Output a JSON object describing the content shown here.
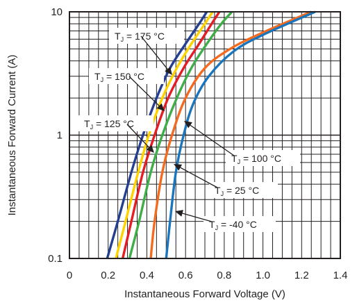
{
  "chart_data": {
    "type": "line",
    "xlabel": "Instantaneous Forward Voltage (V)",
    "ylabel": "Instantaneous Forward Current (A)",
    "x_scale": "linear",
    "y_scale": "log",
    "xlim": [
      0,
      1.4
    ],
    "ylim": [
      0.1,
      10
    ],
    "x_ticks": [
      "0",
      "0.2",
      "0.4",
      "0.6",
      "0.8",
      "1.0",
      "1.2",
      "1.4"
    ],
    "y_ticks": [
      "0.1",
      "1",
      "10"
    ],
    "grid": true,
    "series": [
      {
        "name": "T_J = 175 °C",
        "color": "#243f8f",
        "points": [
          [
            0.195,
            0.1
          ],
          [
            0.25,
            0.2
          ],
          [
            0.32,
            0.5
          ],
          [
            0.38,
            1
          ],
          [
            0.45,
            2
          ],
          [
            0.52,
            3.5
          ],
          [
            0.6,
            5.5
          ],
          [
            0.67,
            8
          ],
          [
            0.71,
            10
          ]
        ]
      },
      {
        "name": "T_J = 150 °C",
        "color": "#ffd200",
        "points": [
          [
            0.24,
            0.1
          ],
          [
            0.29,
            0.2
          ],
          [
            0.355,
            0.5
          ],
          [
            0.41,
            1
          ],
          [
            0.48,
            2
          ],
          [
            0.555,
            3.5
          ],
          [
            0.63,
            5.5
          ],
          [
            0.7,
            8
          ],
          [
            0.74,
            10
          ]
        ]
      },
      {
        "name": "T_J = 125 °C",
        "color": "#e31e24",
        "points": [
          [
            0.275,
            0.1
          ],
          [
            0.32,
            0.2
          ],
          [
            0.38,
            0.5
          ],
          [
            0.44,
            1
          ],
          [
            0.51,
            2
          ],
          [
            0.59,
            3.5
          ],
          [
            0.67,
            5.5
          ],
          [
            0.735,
            8
          ],
          [
            0.775,
            10
          ]
        ]
      },
      {
        "name": "T_J = 100 °C",
        "color": "#3fae49",
        "points": [
          [
            0.31,
            0.1
          ],
          [
            0.36,
            0.2
          ],
          [
            0.42,
            0.5
          ],
          [
            0.48,
            1
          ],
          [
            0.555,
            2
          ],
          [
            0.63,
            3.5
          ],
          [
            0.71,
            5.5
          ],
          [
            0.785,
            8
          ],
          [
            0.84,
            10
          ]
        ]
      },
      {
        "name": "T_J = 25 °C",
        "color": "#f26b21",
        "points": [
          [
            0.42,
            0.1
          ],
          [
            0.44,
            0.2
          ],
          [
            0.48,
            0.5
          ],
          [
            0.53,
            1
          ],
          [
            0.6,
            2
          ],
          [
            0.7,
            3.5
          ],
          [
            0.83,
            5
          ],
          [
            1.0,
            6.8
          ],
          [
            1.25,
            10
          ]
        ]
      },
      {
        "name": "T_J = -40 °C",
        "color": "#1b75bc",
        "points": [
          [
            0.5,
            0.1
          ],
          [
            0.52,
            0.2
          ],
          [
            0.55,
            0.5
          ],
          [
            0.59,
            1
          ],
          [
            0.64,
            1.8
          ],
          [
            0.72,
            3
          ],
          [
            0.85,
            4.8
          ],
          [
            1.0,
            6.5
          ],
          [
            1.27,
            10
          ]
        ]
      }
    ],
    "annotations": [
      {
        "label": "T",
        "sub": "J",
        "rest": " = 175 °C",
        "series": "T_J = 175 °C"
      },
      {
        "label": "T",
        "sub": "J",
        "rest": " = 150 °C",
        "series": "T_J = 150 °C"
      },
      {
        "label": "T",
        "sub": "J",
        "rest": " = 125 °C",
        "series": "T_J = 125 °C"
      },
      {
        "label": "T",
        "sub": "J",
        "rest": " = 100 °C",
        "series": "T_J = 100 °C"
      },
      {
        "label": "T",
        "sub": "J",
        "rest": " = 25 °C",
        "series": "T_J = 25 °C"
      },
      {
        "label": "T",
        "sub": "J",
        "rest": " = -40 °C",
        "series": "T_J = -40 °C"
      }
    ]
  }
}
